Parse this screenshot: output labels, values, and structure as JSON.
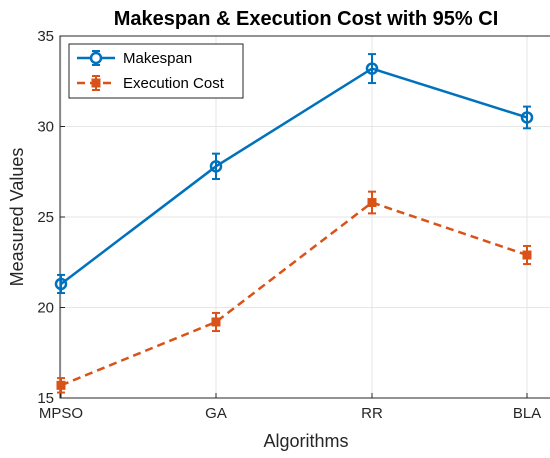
{
  "chart_data": {
    "type": "line",
    "title": "Makespan & Execution Cost with 95% CI",
    "xlabel": "Algorithms",
    "ylabel": "Measured Values",
    "categories": [
      "MPSO",
      "GA",
      "RR",
      "BLA"
    ],
    "ylim": [
      15,
      35
    ],
    "yticks": [
      15,
      20,
      25,
      30,
      35
    ],
    "grid": true,
    "legend_position": "top-left",
    "series": [
      {
        "name": "Makespan",
        "values": [
          21.3,
          27.8,
          33.2,
          30.5
        ],
        "ci_low": [
          20.8,
          27.1,
          32.4,
          29.9
        ],
        "ci_high": [
          21.8,
          28.5,
          34.0,
          31.1
        ],
        "color": "#0072BD",
        "line_style": "solid",
        "marker": "circle"
      },
      {
        "name": "Execution Cost",
        "values": [
          15.7,
          19.2,
          25.8,
          22.9
        ],
        "ci_low": [
          15.3,
          18.7,
          25.2,
          22.4
        ],
        "ci_high": [
          16.1,
          19.7,
          26.4,
          23.4
        ],
        "color": "#D95319",
        "line_style": "dashed",
        "marker": "square"
      }
    ]
  }
}
